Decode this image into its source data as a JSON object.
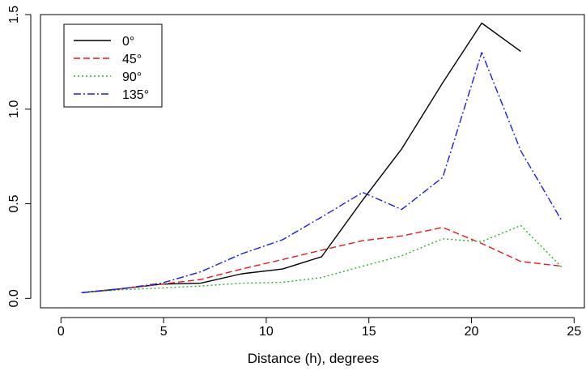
{
  "chart_data": {
    "type": "line",
    "title": "",
    "xlabel": "Distance (h), degrees",
    "ylabel": "",
    "xlim": [
      -1,
      25.5
    ],
    "ylim": [
      -0.05,
      1.5
    ],
    "xticks": [
      0,
      5,
      10,
      15,
      20,
      25
    ],
    "yticks": [
      0.0,
      0.5,
      1.0,
      1.5
    ],
    "xtick_labels": [
      "0",
      "5",
      "10",
      "15",
      "20",
      "25"
    ],
    "ytick_labels": [
      "0.0",
      "0.5",
      "1.0",
      "1.5"
    ],
    "legend_position": "top-left",
    "grid": false,
    "series": [
      {
        "name": "0°",
        "color": "#000000",
        "dash": "solid",
        "x": [
          1.0,
          2.9,
          4.9,
          6.8,
          8.8,
          10.8,
          12.7,
          14.7,
          16.6,
          18.6,
          20.5,
          22.4
        ],
        "y": [
          0.03,
          0.05,
          0.075,
          0.08,
          0.13,
          0.155,
          0.22,
          0.52,
          0.79,
          1.14,
          1.455,
          1.305
        ]
      },
      {
        "name": "45°",
        "color": "#e41a1c",
        "dash": "dashed",
        "x": [
          1.0,
          2.9,
          4.9,
          6.8,
          8.8,
          10.8,
          12.7,
          14.7,
          16.6,
          18.6,
          20.5,
          22.4,
          24.4
        ],
        "y": [
          0.03,
          0.05,
          0.075,
          0.1,
          0.155,
          0.205,
          0.255,
          0.305,
          0.33,
          0.375,
          0.29,
          0.195,
          0.17
        ]
      },
      {
        "name": "90°",
        "color": "#22b422",
        "dash": "dotted",
        "x": [
          1.0,
          2.9,
          4.9,
          6.8,
          8.8,
          10.8,
          12.7,
          14.7,
          16.6,
          18.6,
          20.5,
          22.4,
          24.4
        ],
        "y": [
          0.03,
          0.045,
          0.055,
          0.065,
          0.08,
          0.085,
          0.11,
          0.17,
          0.225,
          0.315,
          0.3,
          0.385,
          0.165
        ]
      },
      {
        "name": "135°",
        "color": "#1a1aee",
        "dash": "dashdot",
        "x": [
          1.0,
          2.9,
          4.9,
          6.8,
          8.8,
          10.8,
          12.7,
          14.7,
          16.6,
          18.6,
          20.5,
          22.4,
          24.4
        ],
        "y": [
          0.03,
          0.05,
          0.08,
          0.14,
          0.235,
          0.31,
          0.43,
          0.56,
          0.47,
          0.64,
          1.3,
          0.78,
          0.41
        ]
      }
    ]
  }
}
